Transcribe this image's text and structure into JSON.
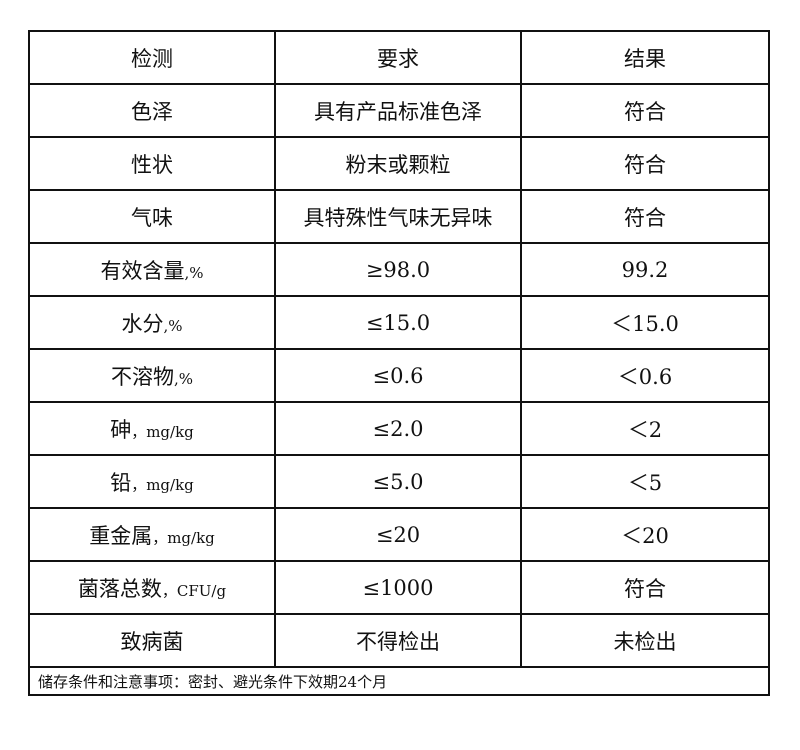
{
  "header": [
    "检测",
    "要求",
    "结果"
  ],
  "rows": [
    {
      "item": "色泽",
      "unit": "",
      "requirement": "具有产品标准色泽",
      "result": "符合"
    },
    {
      "item": "性状",
      "unit": "",
      "requirement": "粉末或颗粒",
      "result": "符合"
    },
    {
      "item": "气味",
      "unit": "",
      "requirement": "具特殊性气味无异味",
      "result": "符合"
    },
    {
      "item": "有效含量",
      "unit": ",%",
      "requirement": "≥98.0",
      "result": "99.2"
    },
    {
      "item": "水分",
      "unit": ",%",
      "requirement": "≤15.0",
      "result": "＜15.0"
    },
    {
      "item": "不溶物",
      "unit": ",%",
      "requirement": "≤0.6",
      "result": "＜0.6"
    },
    {
      "item": "砷",
      "unit": "，mg/kg",
      "requirement": "≤2.0",
      "result": "＜2"
    },
    {
      "item": "铅",
      "unit": "，mg/kg",
      "requirement": "≤5.0",
      "result": "＜5"
    },
    {
      "item": "重金属",
      "unit": "，mg/kg",
      "requirement": "≤20",
      "result": "＜20"
    },
    {
      "item": "菌落总数",
      "unit": "，CFU/g",
      "requirement": "≤1000",
      "result": "符合"
    },
    {
      "item": "致病菌",
      "unit": "",
      "requirement": "不得检出",
      "result": "未检出"
    }
  ],
  "footer": "储存条件和注意事项：密封、避光条件下效期24个月"
}
